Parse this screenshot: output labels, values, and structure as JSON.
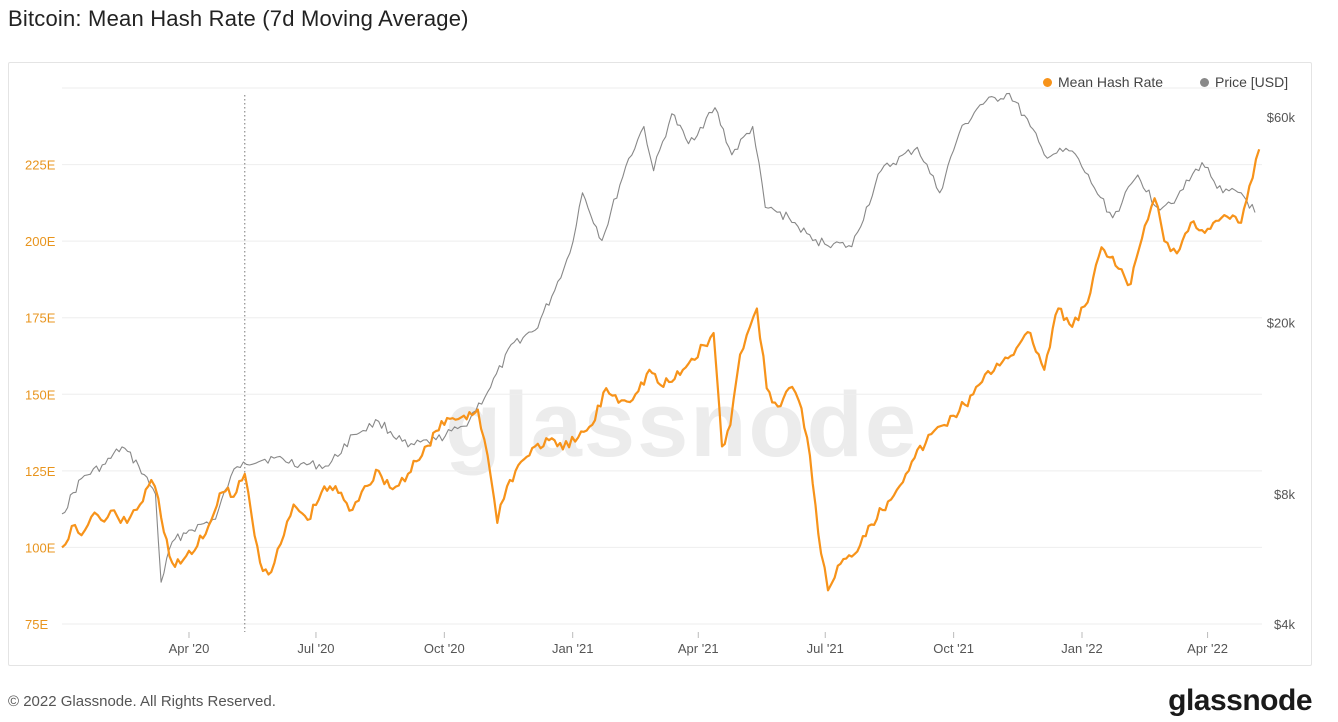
{
  "title": "Bitcoin: Mean Hash Rate (7d Moving Average)",
  "footer": {
    "copyright": "© 2022 Glassnode. All Rights Reserved.",
    "logo": "glassnode"
  },
  "watermark": "glassnode",
  "colors": {
    "hash": "#f7931a",
    "price": "#888888",
    "grid": "#eeeeee",
    "left_axis": "#e8941d",
    "right_axis": "#555555"
  },
  "chart_data": {
    "type": "line",
    "title": "Bitcoin: Mean Hash Rate (7d Moving Average)",
    "legend": {
      "placement": "top-right",
      "entries": [
        "Mean Hash Rate",
        "Price [USD]"
      ]
    },
    "x_ticks": [
      "Apr '20",
      "Jul '20",
      "Oct '20",
      "Jan '21",
      "Apr '21",
      "Jul '21",
      "Oct '21",
      "Jan '22",
      "Apr '22"
    ],
    "x_range": [
      "2020-01-01",
      "2022-05-10"
    ],
    "left_axis": {
      "ticks": [
        "75E",
        "100E",
        "125E",
        "150E",
        "175E",
        "200E",
        "225E"
      ],
      "range": [
        75,
        250
      ]
    },
    "right_axis": {
      "scale": "log",
      "ticks": [
        "$4k",
        "$8k",
        "$20k",
        "$60k"
      ],
      "range": [
        4000,
        80000
      ]
    },
    "annotation": {
      "type": "vertical-dotted-line",
      "date": "2020-05-11"
    },
    "grid": true,
    "series": [
      {
        "name": "Mean Hash Rate",
        "axis": "left",
        "points": [
          [
            "2020-01-01",
            100
          ],
          [
            "2020-01-08",
            107
          ],
          [
            "2020-01-15",
            104
          ],
          [
            "2020-01-22",
            110
          ],
          [
            "2020-01-29",
            109
          ],
          [
            "2020-02-05",
            112
          ],
          [
            "2020-02-12",
            108
          ],
          [
            "2020-02-19",
            110
          ],
          [
            "2020-02-26",
            114
          ],
          [
            "2020-03-05",
            122
          ],
          [
            "2020-03-10",
            116
          ],
          [
            "2020-03-14",
            105
          ],
          [
            "2020-03-20",
            95
          ],
          [
            "2020-03-28",
            96
          ],
          [
            "2020-04-05",
            99
          ],
          [
            "2020-04-15",
            107
          ],
          [
            "2020-04-25",
            118
          ],
          [
            "2020-05-05",
            118
          ],
          [
            "2020-05-11",
            124
          ],
          [
            "2020-05-16",
            110
          ],
          [
            "2020-05-22",
            95
          ],
          [
            "2020-05-30",
            92
          ],
          [
            "2020-06-08",
            104
          ],
          [
            "2020-06-15",
            114
          ],
          [
            "2020-06-25",
            109
          ],
          [
            "2020-07-05",
            118
          ],
          [
            "2020-07-15",
            120
          ],
          [
            "2020-07-25",
            112
          ],
          [
            "2020-08-05",
            120
          ],
          [
            "2020-08-15",
            125
          ],
          [
            "2020-08-25",
            119
          ],
          [
            "2020-09-05",
            124
          ],
          [
            "2020-09-15",
            130
          ],
          [
            "2020-09-25",
            138
          ],
          [
            "2020-10-05",
            142
          ],
          [
            "2020-10-15",
            143
          ],
          [
            "2020-10-25",
            145
          ],
          [
            "2020-11-01",
            130
          ],
          [
            "2020-11-08",
            108
          ],
          [
            "2020-11-15",
            120
          ],
          [
            "2020-11-25",
            128
          ],
          [
            "2020-12-05",
            133
          ],
          [
            "2020-12-15",
            135
          ],
          [
            "2020-12-25",
            132
          ],
          [
            "2021-01-05",
            136
          ],
          [
            "2021-01-15",
            140
          ],
          [
            "2021-01-25",
            152
          ],
          [
            "2021-02-05",
            148
          ],
          [
            "2021-02-15",
            150
          ],
          [
            "2021-02-25",
            158
          ],
          [
            "2021-03-05",
            153
          ],
          [
            "2021-03-15",
            155
          ],
          [
            "2021-03-25",
            160
          ],
          [
            "2021-04-05",
            166
          ],
          [
            "2021-04-12",
            170
          ],
          [
            "2021-04-18",
            133
          ],
          [
            "2021-04-24",
            140
          ],
          [
            "2021-05-01",
            163
          ],
          [
            "2021-05-08",
            172
          ],
          [
            "2021-05-13",
            178
          ],
          [
            "2021-05-20",
            152
          ],
          [
            "2021-05-28",
            146
          ],
          [
            "2021-06-05",
            152
          ],
          [
            "2021-06-12",
            148
          ],
          [
            "2021-06-20",
            130
          ],
          [
            "2021-06-28",
            98
          ],
          [
            "2021-07-03",
            86
          ],
          [
            "2021-07-10",
            94
          ],
          [
            "2021-07-20",
            97
          ],
          [
            "2021-08-01",
            107
          ],
          [
            "2021-08-15",
            115
          ],
          [
            "2021-09-01",
            128
          ],
          [
            "2021-09-15",
            137
          ],
          [
            "2021-10-01",
            143
          ],
          [
            "2021-10-15",
            150
          ],
          [
            "2021-11-01",
            160
          ],
          [
            "2021-11-15",
            165
          ],
          [
            "2021-11-25",
            170
          ],
          [
            "2021-12-05",
            158
          ],
          [
            "2021-12-15",
            178
          ],
          [
            "2021-12-25",
            172
          ],
          [
            "2022-01-05",
            180
          ],
          [
            "2022-01-15",
            198
          ],
          [
            "2022-01-25",
            192
          ],
          [
            "2022-02-05",
            186
          ],
          [
            "2022-02-15",
            205
          ],
          [
            "2022-02-22",
            214
          ],
          [
            "2022-03-01",
            200
          ],
          [
            "2022-03-10",
            196
          ],
          [
            "2022-03-20",
            206
          ],
          [
            "2022-04-01",
            204
          ],
          [
            "2022-04-15",
            208
          ],
          [
            "2022-04-25",
            206
          ],
          [
            "2022-05-01",
            218
          ],
          [
            "2022-05-08",
            230
          ]
        ]
      },
      {
        "name": "Price [USD]",
        "axis": "right",
        "points": [
          [
            "2020-01-01",
            7200
          ],
          [
            "2020-01-15",
            8700
          ],
          [
            "2020-02-01",
            9400
          ],
          [
            "2020-02-13",
            10300
          ],
          [
            "2020-02-25",
            9300
          ],
          [
            "2020-03-08",
            8000
          ],
          [
            "2020-03-12",
            5000
          ],
          [
            "2020-03-20",
            6200
          ],
          [
            "2020-04-01",
            6600
          ],
          [
            "2020-04-20",
            7000
          ],
          [
            "2020-05-01",
            8800
          ],
          [
            "2020-05-10",
            9500
          ],
          [
            "2020-06-01",
            9700
          ],
          [
            "2020-06-20",
            9400
          ],
          [
            "2020-07-10",
            9300
          ],
          [
            "2020-07-28",
            11000
          ],
          [
            "2020-08-15",
            11800
          ],
          [
            "2020-09-05",
            10300
          ],
          [
            "2020-09-25",
            10700
          ],
          [
            "2020-10-15",
            11500
          ],
          [
            "2020-11-01",
            13800
          ],
          [
            "2020-11-20",
            18000
          ],
          [
            "2020-12-05",
            19200
          ],
          [
            "2020-12-17",
            23000
          ],
          [
            "2020-12-30",
            29000
          ],
          [
            "2021-01-08",
            40000
          ],
          [
            "2021-01-22",
            31000
          ],
          [
            "2021-02-08",
            46000
          ],
          [
            "2021-02-21",
            57000
          ],
          [
            "2021-02-28",
            45000
          ],
          [
            "2021-03-13",
            61000
          ],
          [
            "2021-03-25",
            52000
          ],
          [
            "2021-04-13",
            63000
          ],
          [
            "2021-04-25",
            49000
          ],
          [
            "2021-05-10",
            57000
          ],
          [
            "2021-05-19",
            37000
          ],
          [
            "2021-06-05",
            35000
          ],
          [
            "2021-06-22",
            31000
          ],
          [
            "2021-07-20",
            30000
          ],
          [
            "2021-08-10",
            45000
          ],
          [
            "2021-09-05",
            51000
          ],
          [
            "2021-09-21",
            40000
          ],
          [
            "2021-10-05",
            55000
          ],
          [
            "2021-10-20",
            64000
          ],
          [
            "2021-11-10",
            68000
          ],
          [
            "2021-11-25",
            57000
          ],
          [
            "2021-12-05",
            49000
          ],
          [
            "2021-12-25",
            50000
          ],
          [
            "2022-01-10",
            41000
          ],
          [
            "2022-01-23",
            35000
          ],
          [
            "2022-02-10",
            44000
          ],
          [
            "2022-02-24",
            37000
          ],
          [
            "2022-03-10",
            39000
          ],
          [
            "2022-03-28",
            47000
          ],
          [
            "2022-04-12",
            40000
          ],
          [
            "2022-04-25",
            40000
          ],
          [
            "2022-05-05",
            36000
          ]
        ]
      }
    ]
  }
}
